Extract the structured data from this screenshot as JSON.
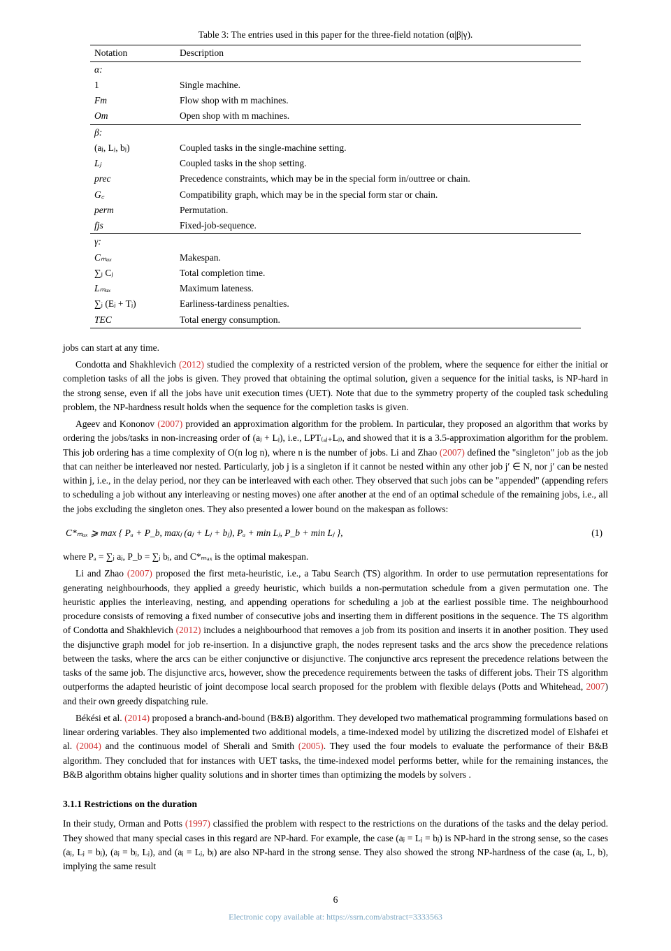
{
  "table": {
    "caption": "Table 3: The entries used in this paper for the three-field notation (α|β|γ).",
    "header": {
      "notation": "Notation",
      "description": "Description"
    },
    "alpha_label": "α:",
    "alpha_rows": [
      {
        "n": "1",
        "d": "Single machine."
      },
      {
        "n": "Fm",
        "d": "Flow shop with m machines.",
        "n_ital": true
      },
      {
        "n": "Om",
        "d": "Open shop with m machines.",
        "n_ital": true
      }
    ],
    "beta_label": "β:",
    "beta_rows": [
      {
        "n": "(aⱼ, Lⱼ, bⱼ)",
        "d": "Coupled tasks in the single-machine setting."
      },
      {
        "n": "Lⱼ",
        "d": "Coupled tasks in the shop setting.",
        "n_ital": true
      },
      {
        "n": "prec",
        "d": "Precedence constraints, which may be in the special form in/outtree or chain.",
        "n_ital": true
      },
      {
        "n": "G꜀",
        "d": "Compatibility graph, which may be in the special form star or chain.",
        "n_ital": true
      },
      {
        "n": "perm",
        "d": "Permutation.",
        "n_ital": true
      },
      {
        "n": "fjs",
        "d": "Fixed-job-sequence.",
        "n_ital": true
      }
    ],
    "gamma_label": "γ:",
    "gamma_rows": [
      {
        "n": "Cₘₐₓ",
        "d": "Makespan.",
        "n_ital": true
      },
      {
        "n": "∑ⱼ Cⱼ",
        "d": "Total completion time."
      },
      {
        "n": "Lₘₐₓ",
        "d": "Maximum lateness.",
        "n_ital": true
      },
      {
        "n": "∑ⱼ (Eⱼ + Tⱼ)",
        "d": "Earliness-tardiness penalties."
      },
      {
        "n": "TEC",
        "d": "Total energy consumption.",
        "n_ital": true
      }
    ]
  },
  "p1": "jobs can start at any time.",
  "p2_a": "Condotta and Shakhlevich ",
  "p2_ref": "(2012)",
  "p2_b": " studied the complexity of a restricted version of the problem, where the sequence for either the initial or completion tasks of all the jobs is given. They proved that obtaining the optimal solution, given a sequence for the initial tasks, is NP-hard in the strong sense, even if all the jobs have unit execution times (UET). Note that due to the symmetry property of the coupled task scheduling problem, the NP-hardness result holds when the sequence for the completion tasks is given.",
  "p3_a": "Ageev and Kononov ",
  "p3_ref1": "(2007)",
  "p3_b": " provided an approximation algorithm for the problem. In particular, they proposed an algorithm that works by ordering the jobs/tasks in non-increasing order of (aⱼ + Lⱼ), i.e., LPT₍ₐⱼ₊Lⱼ₎, and showed that it is a 3.5-approximation algorithm for the problem. This job ordering has a time complexity of O(n log n), where n is the number of jobs. Li and Zhao ",
  "p3_ref2": "(2007)",
  "p3_c": " defined the \"singleton\" job as the job that can neither be interleaved nor nested. Particularly, job j is a singleton if it cannot be nested within any other job j′ ∈ N, nor j′ can be nested within j, i.e., in the delay period, nor they can be interleaved with each other. They observed that such jobs can be \"appended\" (appending refers to scheduling a job without any interleaving or nesting moves) one after another at the end of an optimal schedule of the remaining jobs, i.e., all the jobs excluding the singleton ones. They also presented a lower bound on the makespan as follows:",
  "equation": {
    "content": "C*ₘₐₓ ⩾ max { Pₐ + P_b, maxⱼ (aⱼ + Lⱼ + bⱼ), Pₐ + min Lⱼ, P_b + min Lⱼ },",
    "number": "(1)"
  },
  "p4": "where Pₐ = ∑ⱼ aⱼ, P_b = ∑ⱼ bⱼ, and C*ₘₐₓ is the optimal makespan.",
  "p5_a": "Li and Zhao ",
  "p5_ref1": "(2007)",
  "p5_b": " proposed the first meta-heuristic, i.e., a Tabu Search (TS) algorithm. In order to use permutation representations for generating neighbourhoods, they applied a greedy heuristic, which builds a non-permutation schedule from a given permutation one. The heuristic applies the interleaving, nesting, and appending operations for scheduling a job at the earliest possible time. The neighbourhood procedure consists of removing a fixed number of consecutive jobs and inserting them in different positions in the sequence. The TS algorithm of Condotta and Shakhlevich ",
  "p5_ref2": "(2012)",
  "p5_c": " includes a neighbourhood that removes a job from its position and inserts it in another position. They used the disjunctive graph model for job re-insertion. In a disjunctive graph, the nodes represent tasks and the arcs show the precedence relations between the tasks, where the arcs can be either conjunctive or disjunctive. The conjunctive arcs represent the precedence relations between the tasks of the same job. The disjunctive arcs, however, show the precedence requirements between the tasks of different jobs. Their TS algorithm outperforms the adapted heuristic of joint decompose local search proposed for the problem with flexible delays (Potts and Whitehead, ",
  "p5_ref3": "2007",
  "p5_d": ") and their own greedy dispatching rule.",
  "p6_a": "Békési et al. ",
  "p6_ref1": "(2014)",
  "p6_b": " proposed a branch-and-bound (B&B) algorithm. They developed two mathematical programming formulations based on linear ordering variables. They also implemented two additional models, a time-indexed model by utilizing the discretized model of Elshafei et al. ",
  "p6_ref2": "(2004)",
  "p6_c": " and the continuous model of Sherali and Smith ",
  "p6_ref3": "(2005)",
  "p6_d": ". They used the four models to evaluate the performance of their B&B algorithm. They concluded that for instances with UET tasks, the time-indexed model performs better, while for the remaining instances, the B&B algorithm obtains higher quality solutions and in shorter times than optimizing the models by solvers .",
  "section_heading": "3.1.1   Restrictions on the duration",
  "p7_a": "In their study, Orman and Potts ",
  "p7_ref": "(1997)",
  "p7_b": " classified the problem with respect to the restrictions on the durations of the tasks and the delay period. They showed that many special cases in this regard are NP-hard. For example, the case (aⱼ = Lⱼ = bⱼ) is NP-hard in the strong sense, so the cases (aⱼ, Lⱼ = bⱼ), (aⱼ = bⱼ, Lⱼ), and (aⱼ = Lⱼ, bⱼ) are also NP-hard in the strong sense. They also showed the strong NP-hardness of the case (aⱼ, L, b), implying the same result",
  "page_number": "6",
  "footer": "Electronic copy available at: https://ssrn.com/abstract=3333563",
  "style": {
    "font_size_pt": 10,
    "ref_color": "#d03030",
    "footer_color": "#7aa6c2"
  }
}
